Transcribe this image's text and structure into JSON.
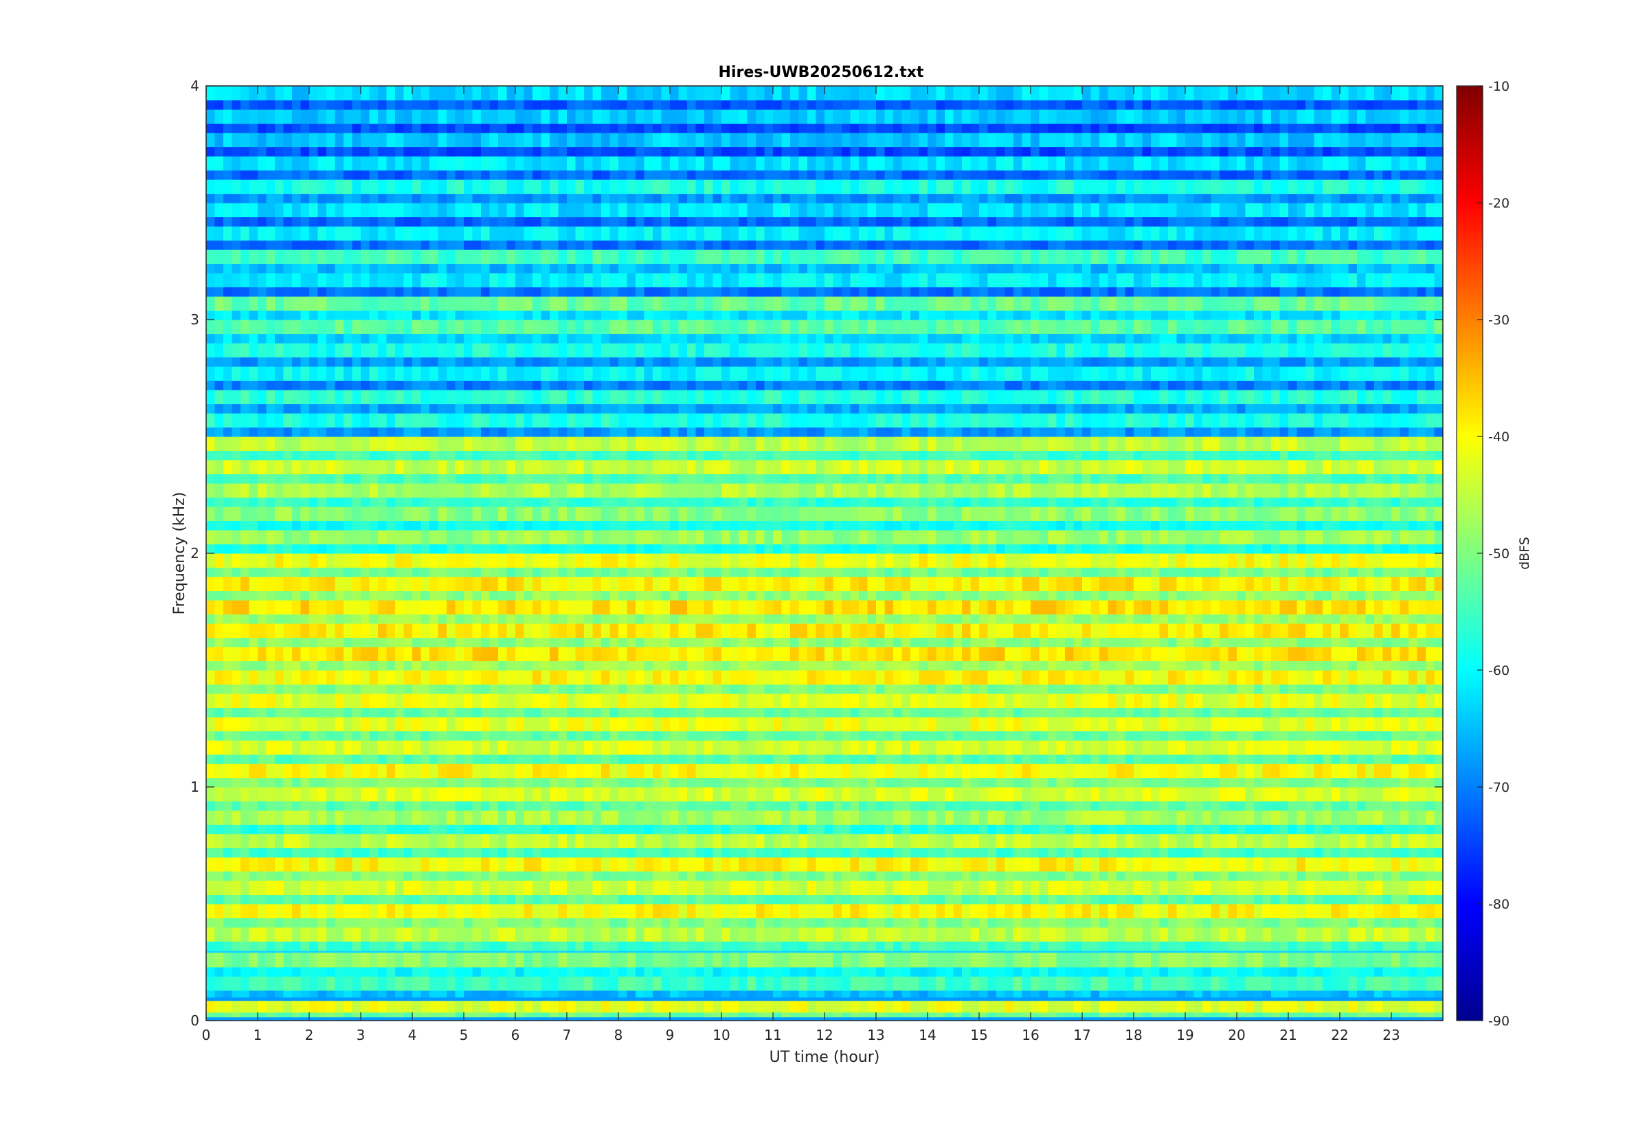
{
  "chart_data": {
    "type": "heatmap",
    "title": "Hires-UWB20250612.txt",
    "xlabel": "UT time (hour)",
    "ylabel": "Frequency (kHz)",
    "xlim": [
      0,
      24
    ],
    "ylim": [
      0,
      4
    ],
    "x_ticks": [
      "0",
      "1",
      "2",
      "3",
      "4",
      "5",
      "6",
      "7",
      "8",
      "9",
      "10",
      "11",
      "12",
      "13",
      "14",
      "15",
      "16",
      "17",
      "18",
      "19",
      "20",
      "21",
      "22",
      "23"
    ],
    "y_ticks": [
      "0",
      "1",
      "2",
      "3",
      "4"
    ],
    "colorbar": {
      "label": "dBFS",
      "range": [
        -90,
        -10
      ],
      "ticks": [
        "-10",
        "-20",
        "-30",
        "-40",
        "-50",
        "-60",
        "-70",
        "-80",
        "-90"
      ],
      "colormap": "jet"
    },
    "grid": false,
    "bands": [
      {
        "freq_khz": 0.04,
        "level_dbfs": -42
      },
      {
        "freq_khz": 0.14,
        "level_dbfs": -55
      },
      {
        "freq_khz": 0.24,
        "level_dbfs": -50
      },
      {
        "freq_khz": 0.35,
        "level_dbfs": -45
      },
      {
        "freq_khz": 0.45,
        "level_dbfs": -40
      },
      {
        "freq_khz": 0.55,
        "level_dbfs": -43
      },
      {
        "freq_khz": 0.65,
        "level_dbfs": -40
      },
      {
        "freq_khz": 0.75,
        "level_dbfs": -45
      },
      {
        "freq_khz": 0.85,
        "level_dbfs": -47
      },
      {
        "freq_khz": 0.95,
        "level_dbfs": -43
      },
      {
        "freq_khz": 1.05,
        "level_dbfs": -40
      },
      {
        "freq_khz": 1.15,
        "level_dbfs": -43
      },
      {
        "freq_khz": 1.25,
        "level_dbfs": -42
      },
      {
        "freq_khz": 1.35,
        "level_dbfs": -42
      },
      {
        "freq_khz": 1.45,
        "level_dbfs": -40
      },
      {
        "freq_khz": 1.55,
        "level_dbfs": -38
      },
      {
        "freq_khz": 1.65,
        "level_dbfs": -39
      },
      {
        "freq_khz": 1.75,
        "level_dbfs": -38
      },
      {
        "freq_khz": 1.85,
        "level_dbfs": -39
      },
      {
        "freq_khz": 1.95,
        "level_dbfs": -41
      },
      {
        "freq_khz": 2.05,
        "level_dbfs": -48
      },
      {
        "freq_khz": 2.15,
        "level_dbfs": -49
      },
      {
        "freq_khz": 2.25,
        "level_dbfs": -46
      },
      {
        "freq_khz": 2.35,
        "level_dbfs": -44
      },
      {
        "freq_khz": 2.45,
        "level_dbfs": -45
      },
      {
        "freq_khz": 2.55,
        "level_dbfs": -58
      },
      {
        "freq_khz": 2.65,
        "level_dbfs": -57
      },
      {
        "freq_khz": 2.75,
        "level_dbfs": -60
      },
      {
        "freq_khz": 2.85,
        "level_dbfs": -58
      },
      {
        "freq_khz": 2.95,
        "level_dbfs": -53
      },
      {
        "freq_khz": 3.05,
        "level_dbfs": -52
      },
      {
        "freq_khz": 3.15,
        "level_dbfs": -61
      },
      {
        "freq_khz": 3.25,
        "level_dbfs": -55
      },
      {
        "freq_khz": 3.35,
        "level_dbfs": -61
      },
      {
        "freq_khz": 3.45,
        "level_dbfs": -62
      },
      {
        "freq_khz": 3.55,
        "level_dbfs": -58
      },
      {
        "freq_khz": 3.65,
        "level_dbfs": -62
      },
      {
        "freq_khz": 3.75,
        "level_dbfs": -64
      },
      {
        "freq_khz": 3.85,
        "level_dbfs": -64
      },
      {
        "freq_khz": 3.95,
        "level_dbfs": -63
      }
    ]
  }
}
